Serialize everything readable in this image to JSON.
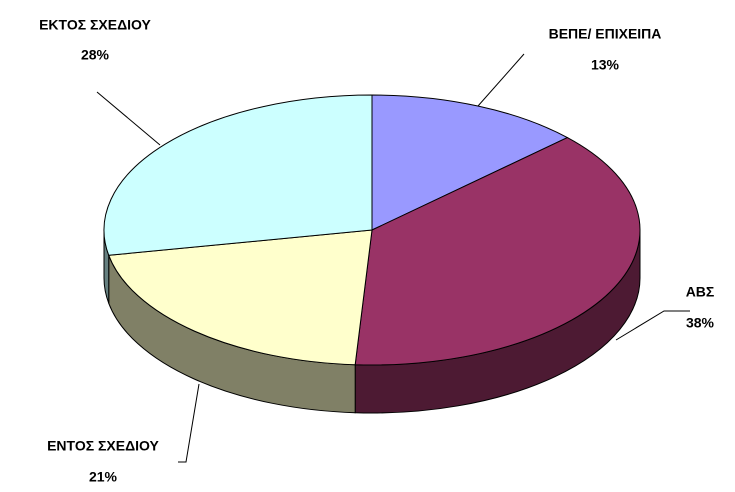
{
  "chart_data": {
    "type": "pie",
    "categories": [
      "ΒΕΠΕ/ ΕΠΙΧΕΙΠΑ",
      "ΑΒΣ",
      "ΕΝΤΟΣ ΣΧΕΔΙΟΥ",
      "ΕΚΤΟΣ ΣΧΕΔΙΟΥ"
    ],
    "values": [
      13,
      38,
      21,
      28
    ],
    "value_labels": [
      "13%",
      "38%",
      "21%",
      "28%"
    ],
    "colors": [
      "#9999ff",
      "#993366",
      "#ffffcc",
      "#ccffff"
    ]
  }
}
